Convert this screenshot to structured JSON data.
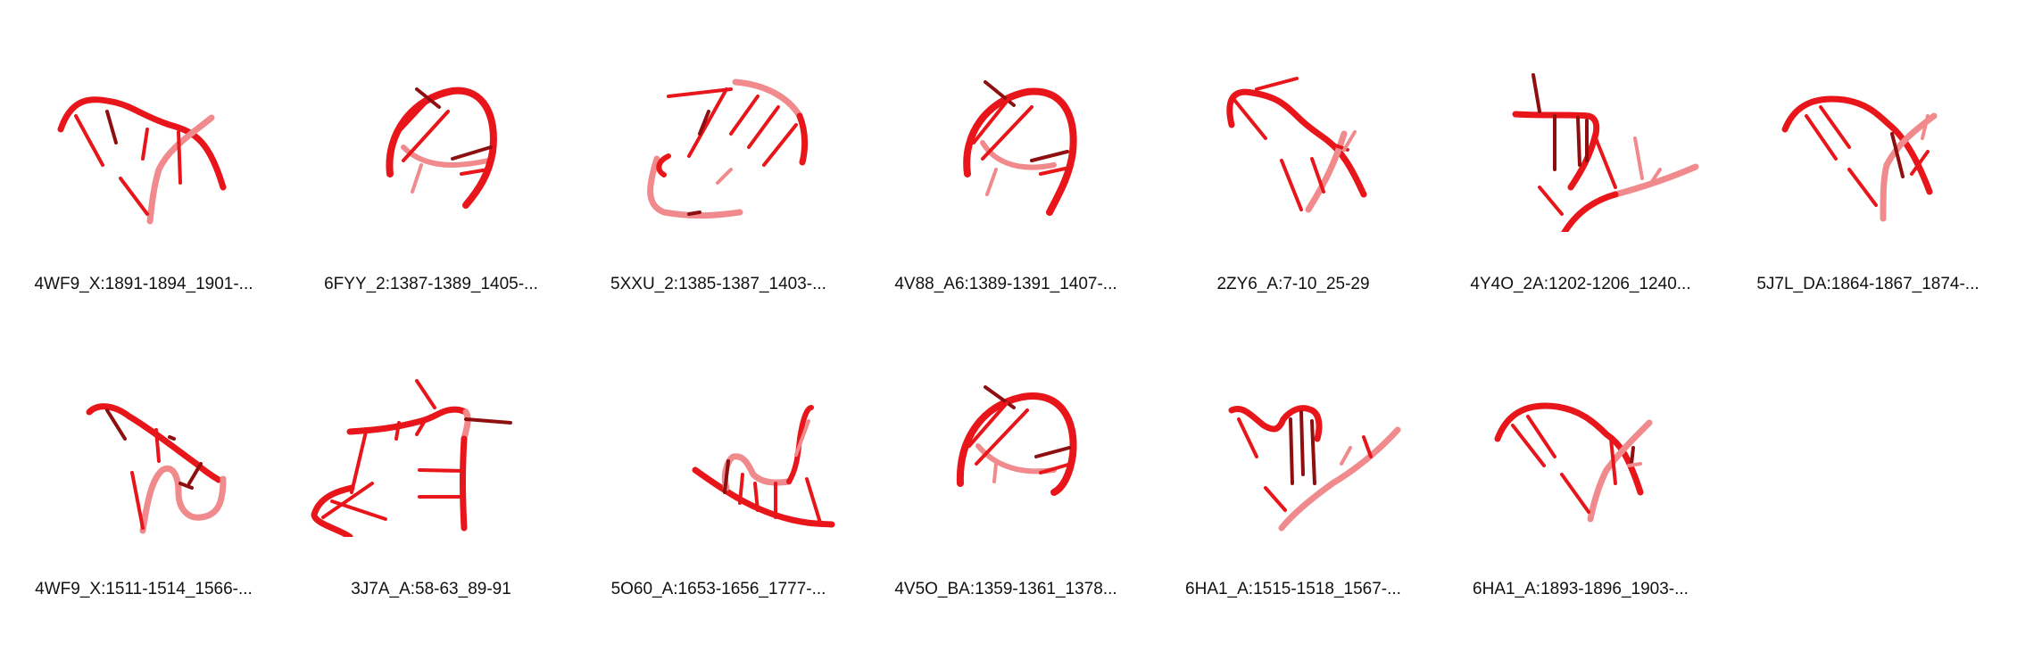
{
  "colors": {
    "backbone": "#e8161a",
    "backbone_light": "#f08a8c",
    "dark": "#8e0f10"
  },
  "structures": [
    {
      "id": "4WF9_X:1891-1894_1901-...",
      "icon": "rna-backbone-icon"
    },
    {
      "id": "6FYY_2:1387-1389_1405-...",
      "icon": "rna-backbone-icon"
    },
    {
      "id": "5XXU_2:1385-1387_1403-...",
      "icon": "rna-backbone-icon"
    },
    {
      "id": "4V88_A6:1389-1391_1407-...",
      "icon": "rna-backbone-icon"
    },
    {
      "id": "2ZY6_A:7-10_25-29",
      "icon": "rna-backbone-icon"
    },
    {
      "id": "4Y4O_2A:1202-1206_1240...",
      "icon": "rna-backbone-icon"
    },
    {
      "id": "5J7L_DA:1864-1867_1874-...",
      "icon": "rna-backbone-icon"
    },
    {
      "id": "4WF9_X:1511-1514_1566-...",
      "icon": "rna-backbone-icon"
    },
    {
      "id": "3J7A_A:58-63_89-91",
      "icon": "rna-backbone-icon"
    },
    {
      "id": "5O60_A:1653-1656_1777-...",
      "icon": "rna-backbone-icon"
    },
    {
      "id": "4V5O_BA:1359-1361_1378...",
      "icon": "rna-backbone-icon"
    },
    {
      "id": "6HA1_A:1515-1518_1567-...",
      "icon": "rna-backbone-icon"
    },
    {
      "id": "6HA1_A:1893-1896_1903-...",
      "icon": "rna-backbone-icon"
    }
  ]
}
